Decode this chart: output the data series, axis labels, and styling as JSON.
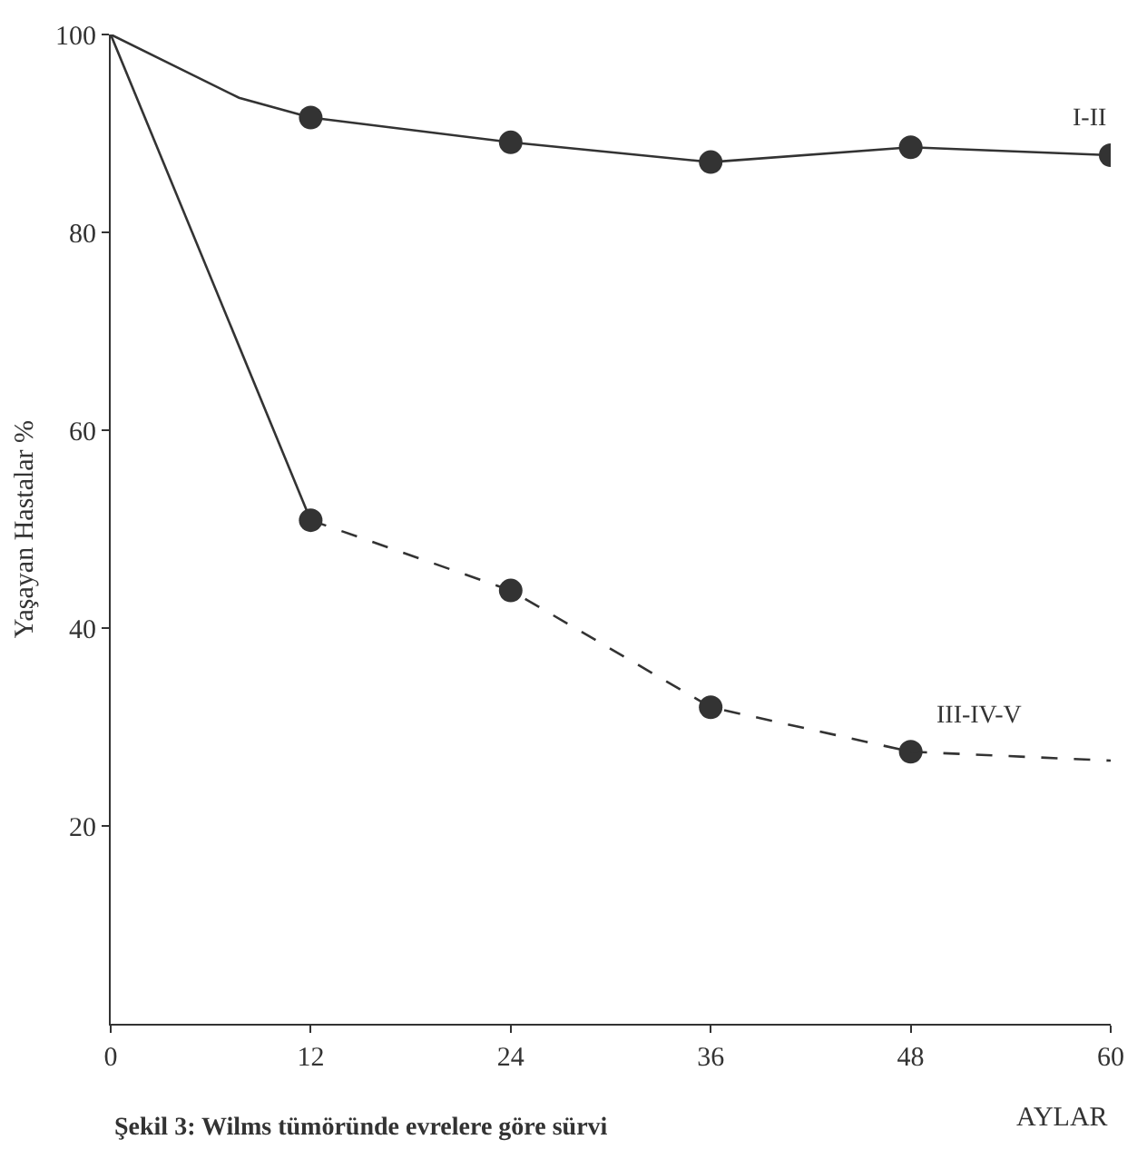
{
  "chart_data": {
    "type": "line",
    "xlabel": "AYLAR",
    "ylabel": "Yaşayan Hastalar %",
    "series": [
      {
        "color": "#333333",
        "x": [
          0,
          7.7,
          12
        ],
        "values": [
          100,
          93.6,
          91.6
        ],
        "line_style": "solid"
      },
      {
        "name": "I-II",
        "color": "#333333",
        "x": [
          12,
          24,
          36,
          48,
          60
        ],
        "values": [
          91.6,
          89.1,
          87.1,
          88.6,
          87.8
        ],
        "marker": "circle",
        "line_style": "solid"
      },
      {
        "color": "#333333",
        "x": [
          0,
          12
        ],
        "values": [
          100,
          50.9
        ],
        "line_style": "solid"
      },
      {
        "name": "III-IV-V",
        "color": "#333333",
        "x": [
          12,
          24,
          36,
          48
        ],
        "values": [
          50.9,
          43.8,
          32.0,
          27.5
        ],
        "marker": "circle",
        "line_style": "dashed"
      },
      {
        "color": "#333333",
        "x": [
          48,
          60
        ],
        "values": [
          27.5,
          26.6
        ],
        "line_style": "dashed"
      }
    ],
    "xlim": [
      0,
      60
    ],
    "xticks": [
      0,
      12,
      24,
      36,
      48,
      60
    ],
    "ylim": [
      0,
      100
    ],
    "yticks": [
      20,
      40,
      60,
      80,
      100
    ],
    "grid": false,
    "legend": false,
    "annotations": [
      "Şekil 3: Wilms tümöründe evrelere göre sürvi"
    ]
  }
}
